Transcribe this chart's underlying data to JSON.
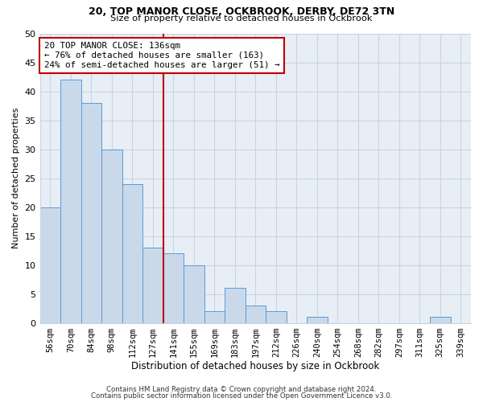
{
  "title1": "20, TOP MANOR CLOSE, OCKBROOK, DERBY, DE72 3TN",
  "title2": "Size of property relative to detached houses in Ockbrook",
  "xlabel": "Distribution of detached houses by size in Ockbrook",
  "ylabel": "Number of detached properties",
  "categories": [
    "56sqm",
    "70sqm",
    "84sqm",
    "98sqm",
    "112sqm",
    "127sqm",
    "141sqm",
    "155sqm",
    "169sqm",
    "183sqm",
    "197sqm",
    "212sqm",
    "226sqm",
    "240sqm",
    "254sqm",
    "268sqm",
    "282sqm",
    "297sqm",
    "311sqm",
    "325sqm",
    "339sqm"
  ],
  "values": [
    20,
    42,
    38,
    30,
    24,
    13,
    12,
    10,
    2,
    6,
    3,
    2,
    0,
    1,
    0,
    0,
    0,
    0,
    0,
    1,
    0
  ],
  "bar_color": "#c9d9ea",
  "bar_edge_color": "#5b9bd5",
  "vline_color": "#c00000",
  "vline_index": 6.0,
  "annotation_text": "20 TOP MANOR CLOSE: 136sqm\n← 76% of detached houses are smaller (163)\n24% of semi-detached houses are larger (51) →",
  "annotation_box_color": "white",
  "annotation_box_edge_color": "#c00000",
  "grid_color": "#c8d4e4",
  "background_color": "#e8eef6",
  "footer1": "Contains HM Land Registry data © Crown copyright and database right 2024.",
  "footer2": "Contains public sector information licensed under the Open Government Licence v3.0.",
  "ylim": [
    0,
    50
  ],
  "yticks": [
    0,
    5,
    10,
    15,
    20,
    25,
    30,
    35,
    40,
    45,
    50
  ]
}
